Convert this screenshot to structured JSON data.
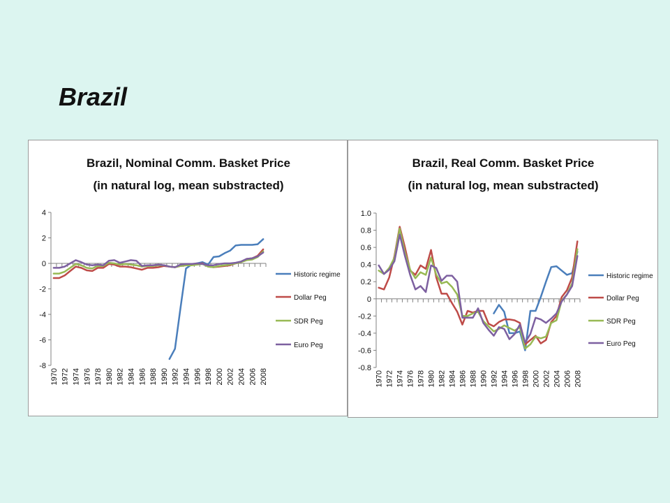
{
  "slide": {
    "title": "Brazil"
  },
  "chart_data": [
    {
      "type": "line",
      "title": "Brazil, Nominal Comm. Basket Price",
      "subtitle": "(in natural log, mean substracted)",
      "xlabel": "",
      "ylabel": "",
      "ylim": [
        -8,
        4
      ],
      "yticks": [
        4,
        2,
        0,
        -2,
        -4,
        -6,
        -8
      ],
      "x": [
        1970,
        1971,
        1972,
        1973,
        1974,
        1975,
        1976,
        1977,
        1978,
        1979,
        1980,
        1981,
        1982,
        1983,
        1984,
        1985,
        1986,
        1987,
        1988,
        1989,
        1990,
        1991,
        1992,
        1993,
        1994,
        1995,
        1996,
        1997,
        1998,
        1999,
        2000,
        2001,
        2002,
        2003,
        2004,
        2005,
        2006,
        2007,
        2008
      ],
      "xticks": [
        1970,
        1972,
        1974,
        1976,
        1978,
        1980,
        1982,
        1984,
        1986,
        1988,
        1990,
        1992,
        1994,
        1996,
        1998,
        2000,
        2002,
        2004,
        2006,
        2008
      ],
      "legend": "right",
      "series": [
        {
          "name": "Historic regime",
          "color": "#4a7ebb",
          "values": [
            null,
            null,
            null,
            null,
            null,
            null,
            null,
            null,
            null,
            null,
            null,
            null,
            null,
            null,
            null,
            null,
            null,
            null,
            null,
            null,
            null,
            -7.5,
            -6.7,
            -3.5,
            -0.4,
            -0.1,
            0.0,
            0.1,
            -0.1,
            0.5,
            0.55,
            0.8,
            1.0,
            1.4,
            1.45,
            1.45,
            1.45,
            1.5,
            1.9
          ]
        },
        {
          "name": "Dollar Peg",
          "color": "#be4b48",
          "values": [
            -1.15,
            -1.15,
            -0.95,
            -0.6,
            -0.25,
            -0.35,
            -0.55,
            -0.6,
            -0.35,
            -0.35,
            -0.05,
            -0.1,
            -0.25,
            -0.25,
            -0.3,
            -0.4,
            -0.5,
            -0.35,
            -0.35,
            -0.3,
            -0.2,
            -0.25,
            -0.3,
            -0.2,
            -0.15,
            -0.1,
            -0.05,
            0.0,
            -0.25,
            -0.3,
            -0.25,
            -0.2,
            -0.15,
            0.0,
            0.1,
            0.35,
            0.4,
            0.6,
            1.1
          ]
        },
        {
          "name": "SDR Peg",
          "color": "#98b954",
          "values": [
            -0.8,
            -0.8,
            -0.65,
            -0.35,
            -0.05,
            -0.15,
            -0.35,
            -0.4,
            -0.2,
            -0.2,
            0.05,
            0.0,
            -0.1,
            -0.05,
            -0.1,
            -0.15,
            -0.25,
            -0.2,
            -0.2,
            -0.15,
            -0.15,
            -0.25,
            -0.3,
            -0.2,
            -0.15,
            -0.15,
            -0.1,
            -0.05,
            -0.25,
            -0.3,
            -0.2,
            -0.15,
            -0.1,
            0.0,
            0.1,
            0.25,
            0.3,
            0.5,
            0.95
          ]
        },
        {
          "name": "Euro Peg",
          "color": "#7d60a0",
          "values": [
            -0.35,
            -0.35,
            -0.25,
            0.0,
            0.25,
            0.1,
            -0.1,
            -0.15,
            -0.1,
            -0.15,
            0.2,
            0.25,
            0.05,
            0.15,
            0.25,
            0.2,
            -0.2,
            -0.15,
            -0.15,
            -0.1,
            -0.15,
            -0.25,
            -0.3,
            -0.1,
            -0.05,
            -0.05,
            0.0,
            -0.05,
            -0.15,
            -0.15,
            -0.05,
            0.0,
            0.0,
            0.05,
            0.15,
            0.35,
            0.4,
            0.55,
            0.85
          ]
        }
      ]
    },
    {
      "type": "line",
      "title": "Brazil, Real Comm. Basket Price",
      "subtitle": "(in natural log, mean substracted)",
      "xlabel": "",
      "ylabel": "",
      "ylim": [
        -0.8,
        1
      ],
      "yticks": [
        1,
        0.8,
        0.6,
        0.4,
        0.2,
        0,
        -0.2,
        -0.4,
        -0.6,
        -0.8
      ],
      "x": [
        1970,
        1971,
        1972,
        1973,
        1974,
        1975,
        1976,
        1977,
        1978,
        1979,
        1980,
        1981,
        1982,
        1983,
        1984,
        1985,
        1986,
        1987,
        1988,
        1989,
        1990,
        1991,
        1992,
        1993,
        1994,
        1995,
        1996,
        1997,
        1998,
        1999,
        2000,
        2001,
        2002,
        2003,
        2004,
        2005,
        2006,
        2007,
        2008
      ],
      "xticks": [
        1970,
        1972,
        1974,
        1976,
        1978,
        1980,
        1982,
        1984,
        1986,
        1988,
        1990,
        1992,
        1994,
        1996,
        1998,
        2000,
        2002,
        2004,
        2006,
        2008
      ],
      "legend": "right",
      "series": [
        {
          "name": "Historic regime",
          "color": "#4a7ebb",
          "values": [
            null,
            null,
            null,
            null,
            null,
            null,
            null,
            null,
            null,
            null,
            null,
            null,
            null,
            null,
            null,
            null,
            null,
            null,
            null,
            null,
            null,
            null,
            -0.17,
            -0.07,
            -0.15,
            -0.4,
            -0.4,
            -0.38,
            -0.6,
            -0.14,
            -0.14,
            0.02,
            0.2,
            0.37,
            0.38,
            0.33,
            0.28,
            0.3,
            0.55
          ]
        },
        {
          "name": "Dollar Peg",
          "color": "#be4b48",
          "values": [
            0.13,
            0.11,
            0.25,
            0.5,
            0.84,
            0.6,
            0.33,
            0.28,
            0.39,
            0.35,
            0.57,
            0.25,
            0.06,
            0.06,
            -0.05,
            -0.15,
            -0.3,
            -0.14,
            -0.16,
            -0.14,
            -0.14,
            -0.29,
            -0.32,
            -0.27,
            -0.24,
            -0.24,
            -0.25,
            -0.28,
            -0.53,
            -0.48,
            -0.43,
            -0.52,
            -0.48,
            -0.27,
            -0.2,
            0.02,
            0.1,
            0.25,
            0.67
          ]
        },
        {
          "name": "SDR Peg",
          "color": "#98b954",
          "values": [
            0.33,
            0.29,
            0.36,
            0.48,
            0.82,
            0.54,
            0.34,
            0.24,
            0.31,
            0.28,
            0.48,
            0.28,
            0.18,
            0.2,
            0.14,
            0.05,
            -0.2,
            -0.2,
            -0.17,
            -0.15,
            -0.26,
            -0.32,
            -0.38,
            -0.35,
            -0.31,
            -0.34,
            -0.37,
            -0.33,
            -0.58,
            -0.53,
            -0.44,
            -0.46,
            -0.44,
            -0.28,
            -0.25,
            -0.02,
            0.05,
            0.18,
            0.58
          ]
        },
        {
          "name": "Euro Peg",
          "color": "#7d60a0",
          "values": [
            0.39,
            0.29,
            0.34,
            0.44,
            0.75,
            0.5,
            0.28,
            0.11,
            0.15,
            0.08,
            0.39,
            0.36,
            0.21,
            0.27,
            0.27,
            0.2,
            -0.22,
            -0.22,
            -0.22,
            -0.11,
            -0.28,
            -0.36,
            -0.43,
            -0.33,
            -0.35,
            -0.47,
            -0.41,
            -0.3,
            -0.51,
            -0.41,
            -0.22,
            -0.24,
            -0.28,
            -0.23,
            -0.17,
            -0.03,
            0.05,
            0.15,
            0.5
          ]
        }
      ]
    }
  ]
}
